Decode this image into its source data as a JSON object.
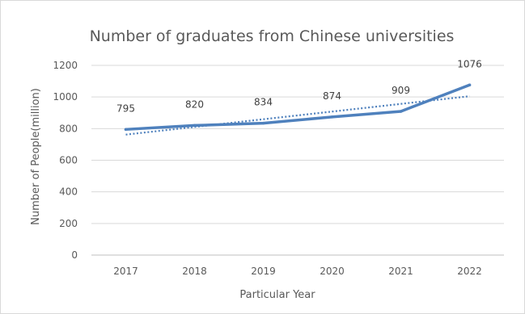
{
  "chart_data": {
    "type": "line",
    "title": "Number of graduates from Chinese universities",
    "xlabel": "Particular Year",
    "ylabel": "Number of People(million)",
    "categories": [
      "2017",
      "2018",
      "2019",
      "2020",
      "2021",
      "2022"
    ],
    "y_ticks": [
      "0",
      "200",
      "400",
      "600",
      "800",
      "1000",
      "1200"
    ],
    "ylim": [
      0,
      1200
    ],
    "grid": true,
    "legend": "none",
    "series": [
      {
        "values": [
          795,
          820,
          834,
          874,
          909,
          1076
        ],
        "data_labels": [
          "795",
          "820",
          "834",
          "874",
          "909",
          "1076"
        ],
        "color": "#4f81bd",
        "style": "solid"
      }
    ],
    "trendline": {
      "type": "linear",
      "style": "dotted",
      "color": "#4f81bd",
      "start_value": 762,
      "end_value": 1005
    }
  }
}
